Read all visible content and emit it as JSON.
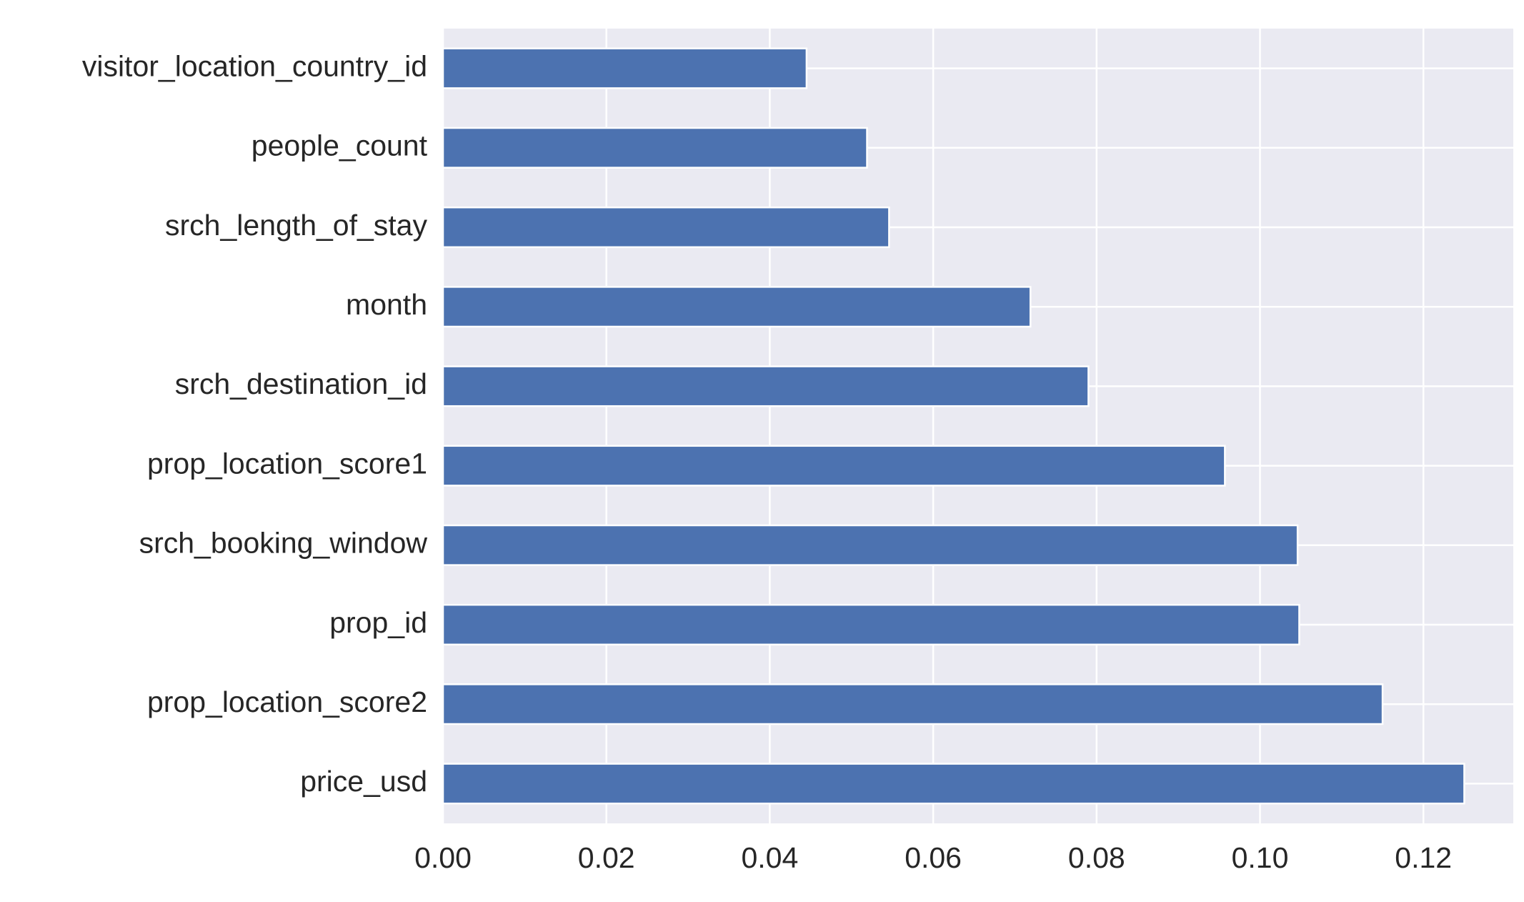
{
  "chart_data": {
    "type": "bar",
    "orientation": "horizontal",
    "title": "",
    "xlabel": "",
    "ylabel": "",
    "categories": [
      "visitor_location_country_id",
      "people_count",
      "srch_length_of_stay",
      "month",
      "srch_destination_id",
      "prop_location_score1",
      "srch_booking_window",
      "prop_id",
      "prop_location_score2",
      "price_usd"
    ],
    "values": [
      0.0445,
      0.0519,
      0.0546,
      0.0719,
      0.079,
      0.0957,
      0.1046,
      0.1048,
      0.115,
      0.125
    ],
    "xlim": [
      0.0,
      0.131
    ],
    "xticks": [
      0.0,
      0.02,
      0.04,
      0.06,
      0.08,
      0.1,
      0.12
    ],
    "xtick_labels": [
      "0.00",
      "0.02",
      "0.04",
      "0.06",
      "0.08",
      "0.10",
      "0.12"
    ],
    "grid": true,
    "legend": "none",
    "colors": {
      "bar": "#4c72b0",
      "plot_background": "#eaeaf2",
      "grid": "#ffffff",
      "text": "#262626"
    }
  }
}
